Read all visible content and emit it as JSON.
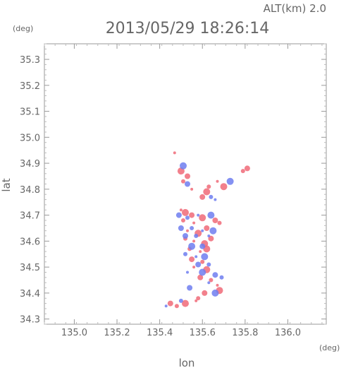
{
  "header": {
    "alt_label": "ALT(km) 2.0",
    "timestamp": "2013/05/29 18:26:14",
    "y_unit": "(deg)",
    "x_unit": "(deg)"
  },
  "chart_data": {
    "type": "scatter",
    "title": "2013/05/29 18:26:14",
    "subtitle": "ALT(km) 2.0",
    "xlabel": "lon",
    "ylabel": "lat",
    "xlim": [
      134.86,
      136.18
    ],
    "ylim": [
      34.28,
      35.36
    ],
    "x_ticks": [
      "135.0",
      "135.2",
      "135.4",
      "135.6",
      "135.8",
      "136.0"
    ],
    "y_ticks": [
      "34.3",
      "34.4",
      "34.5",
      "34.6",
      "34.7",
      "34.8",
      "34.9",
      "35.0",
      "35.1",
      "35.2",
      "35.3"
    ],
    "grid": false,
    "colors": {
      "positive": "#f06a78",
      "negative": "#6f7ef0",
      "frame": "#999999"
    },
    "series": [
      {
        "values": [
          [
            135.47,
            34.94
          ],
          [
            135.5,
            34.87
          ],
          [
            135.53,
            34.85
          ],
          [
            135.51,
            34.83
          ],
          [
            135.55,
            34.8
          ],
          [
            135.62,
            34.79
          ],
          [
            135.6,
            34.77
          ],
          [
            135.63,
            34.81
          ],
          [
            135.67,
            34.83
          ],
          [
            135.7,
            34.81
          ],
          [
            135.81,
            34.88
          ],
          [
            135.79,
            34.87
          ],
          [
            135.5,
            34.72
          ],
          [
            135.52,
            34.71
          ],
          [
            135.55,
            34.7
          ],
          [
            135.51,
            34.68
          ],
          [
            135.56,
            34.67
          ],
          [
            135.6,
            34.69
          ],
          [
            135.66,
            34.68
          ],
          [
            135.68,
            34.67
          ],
          [
            135.53,
            34.64
          ],
          [
            135.58,
            34.63
          ],
          [
            135.62,
            34.65
          ],
          [
            135.52,
            34.61
          ],
          [
            135.56,
            34.6
          ],
          [
            135.61,
            34.59
          ],
          [
            135.64,
            34.61
          ],
          [
            135.54,
            34.57
          ],
          [
            135.59,
            34.56
          ],
          [
            135.62,
            34.57
          ],
          [
            135.55,
            34.53
          ],
          [
            135.6,
            34.52
          ],
          [
            135.56,
            34.5
          ],
          [
            135.62,
            34.49
          ],
          [
            135.59,
            34.46
          ],
          [
            135.64,
            34.45
          ],
          [
            135.67,
            34.43
          ],
          [
            135.68,
            34.41
          ],
          [
            135.61,
            34.4
          ],
          [
            135.58,
            34.38
          ],
          [
            135.57,
            34.37
          ],
          [
            135.52,
            34.36
          ],
          [
            135.45,
            34.36
          ],
          [
            135.48,
            34.35
          ]
        ]
      },
      {
        "values": [
          [
            135.51,
            34.89
          ],
          [
            135.53,
            34.82
          ],
          [
            135.64,
            34.77
          ],
          [
            135.66,
            34.76
          ],
          [
            135.73,
            34.83
          ],
          [
            135.49,
            34.7
          ],
          [
            135.53,
            34.69
          ],
          [
            135.58,
            34.7
          ],
          [
            135.64,
            34.7
          ],
          [
            135.5,
            34.65
          ],
          [
            135.55,
            34.65
          ],
          [
            135.6,
            34.64
          ],
          [
            135.65,
            34.64
          ],
          [
            135.52,
            34.62
          ],
          [
            135.57,
            34.62
          ],
          [
            135.63,
            34.62
          ],
          [
            135.55,
            34.58
          ],
          [
            135.6,
            34.58
          ],
          [
            135.52,
            34.55
          ],
          [
            135.57,
            34.54
          ],
          [
            135.61,
            34.54
          ],
          [
            135.58,
            34.51
          ],
          [
            135.63,
            34.51
          ],
          [
            135.53,
            34.48
          ],
          [
            135.6,
            34.48
          ],
          [
            135.66,
            34.47
          ],
          [
            135.69,
            34.46
          ],
          [
            135.63,
            34.44
          ],
          [
            135.66,
            34.4
          ],
          [
            135.54,
            34.42
          ],
          [
            135.5,
            34.37
          ],
          [
            135.43,
            34.35
          ]
        ]
      }
    ]
  }
}
